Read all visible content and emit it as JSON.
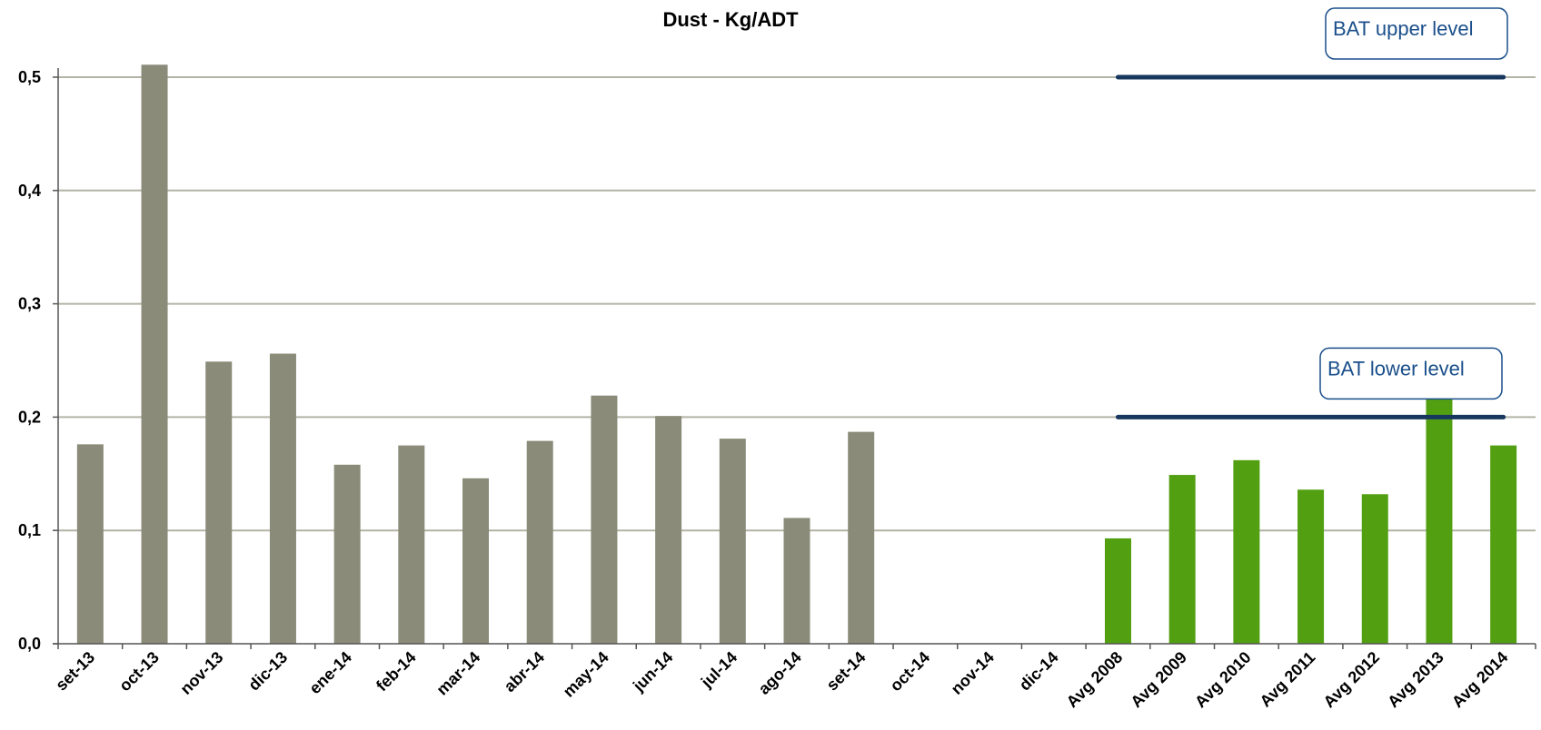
{
  "chart_data": {
    "type": "bar",
    "title": "Dust - Kg/ADT",
    "xlabel": "",
    "ylabel": "",
    "ylim": [
      0,
      0.5
    ],
    "yticks": [
      "0,0",
      "0,1",
      "0,2",
      "0,3",
      "0,4",
      "0,5"
    ],
    "categories": [
      "set-13",
      "oct-13",
      "nov-13",
      "dic-13",
      "ene-14",
      "feb-14",
      "mar-14",
      "abr-14",
      "may-14",
      "jun-14",
      "jul-14",
      "ago-14",
      "set-14",
      "oct-14",
      "nov-14",
      "dic-14",
      "Avg 2008",
      "Avg 2009",
      "Avg 2010",
      "Avg 2011",
      "Avg 2012",
      "Avg 2013",
      "Avg 2014"
    ],
    "values": [
      0.176,
      0.511,
      0.249,
      0.256,
      0.158,
      0.175,
      0.146,
      0.179,
      0.219,
      0.201,
      0.181,
      0.111,
      0.187,
      null,
      null,
      null,
      0.093,
      0.149,
      0.162,
      0.136,
      0.132,
      0.22,
      0.175
    ],
    "bar_colors": {
      "monthly": "#8b8b7a",
      "average": "#52a012"
    },
    "grid": true,
    "reference_lines": [
      {
        "label": "BAT upper level",
        "value": 0.5,
        "from_category": "Avg 2008",
        "to_category": "Avg 2014",
        "color": "#17375e"
      },
      {
        "label": "BAT lower level",
        "value": 0.2,
        "from_category": "Avg 2008",
        "to_category": "Avg 2014",
        "color": "#17375e"
      }
    ],
    "gridline_color": "#b3b3a6",
    "callout_color": "#1a4f8b"
  }
}
